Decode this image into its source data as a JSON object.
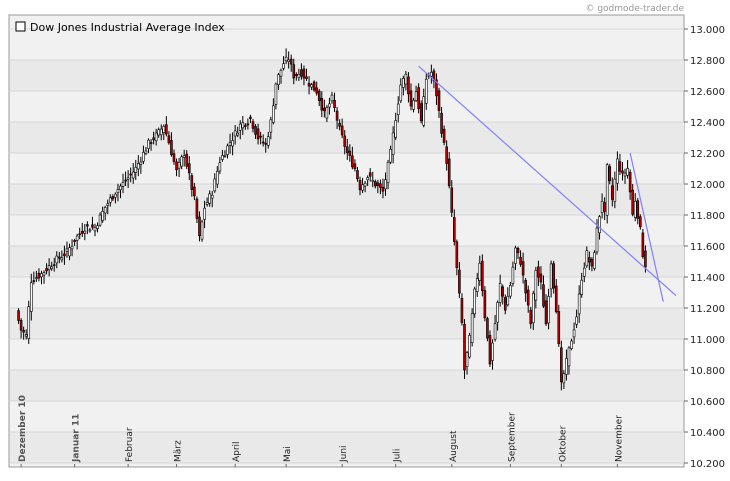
{
  "credit": "© godmode-trader.de",
  "chart_data": {
    "type": "candlestick",
    "title": "Dow Jones Industrial Average Index",
    "ylim": [
      10200,
      13000
    ],
    "yticks": [
      10200,
      10400,
      10600,
      10800,
      11000,
      11200,
      11400,
      11600,
      11800,
      12000,
      12200,
      12400,
      12600,
      12800,
      13000
    ],
    "ytick_labels": [
      "10.200",
      "10.400",
      "10.600",
      "10.800",
      "11.000",
      "11.200",
      "11.400",
      "11.600",
      "11.800",
      "12.000",
      "12.200",
      "12.400",
      "12.600",
      "12.800",
      "13.000"
    ],
    "x_range": [
      0,
      259
    ],
    "months": [
      {
        "label": "Dezember 10",
        "x": 2,
        "bold": true
      },
      {
        "label": "Januar 11",
        "x": 23,
        "bold": true
      },
      {
        "label": "Februar",
        "x": 44,
        "bold": false
      },
      {
        "label": "März",
        "x": 63,
        "bold": false
      },
      {
        "label": "April",
        "x": 86,
        "bold": false
      },
      {
        "label": "Mai",
        "x": 106,
        "bold": false
      },
      {
        "label": "Juni",
        "x": 128,
        "bold": false
      },
      {
        "label": "Juli",
        "x": 149,
        "bold": false
      },
      {
        "label": "August",
        "x": 171,
        "bold": false
      },
      {
        "label": "September",
        "x": 194,
        "bold": false
      },
      {
        "label": "Oktober",
        "x": 214,
        "bold": false
      },
      {
        "label": "November",
        "x": 236,
        "bold": false
      }
    ],
    "close_path": [
      [
        0,
        11180
      ],
      [
        2,
        11060
      ],
      [
        4,
        11020
      ],
      [
        6,
        11380
      ],
      [
        10,
        11420
      ],
      [
        15,
        11500
      ],
      [
        20,
        11560
      ],
      [
        23,
        11640
      ],
      [
        27,
        11720
      ],
      [
        31,
        11720
      ],
      [
        35,
        11850
      ],
      [
        39,
        11950
      ],
      [
        43,
        12020
      ],
      [
        47,
        12100
      ],
      [
        52,
        12260
      ],
      [
        56,
        12330
      ],
      [
        58,
        12380
      ],
      [
        60,
        12270
      ],
      [
        63,
        12080
      ],
      [
        66,
        12200
      ],
      [
        68,
        12050
      ],
      [
        70,
        11900
      ],
      [
        72,
        11650
      ],
      [
        74,
        11850
      ],
      [
        77,
        11950
      ],
      [
        80,
        12150
      ],
      [
        84,
        12270
      ],
      [
        88,
        12380
      ],
      [
        92,
        12420
      ],
      [
        95,
        12300
      ],
      [
        98,
        12250
      ],
      [
        100,
        12400
      ],
      [
        102,
        12650
      ],
      [
        105,
        12780
      ],
      [
        107,
        12810
      ],
      [
        109,
        12700
      ],
      [
        112,
        12720
      ],
      [
        115,
        12650
      ],
      [
        118,
        12600
      ],
      [
        121,
        12450
      ],
      [
        124,
        12550
      ],
      [
        127,
        12350
      ],
      [
        130,
        12200
      ],
      [
        133,
        12100
      ],
      [
        135,
        11980
      ],
      [
        138,
        12050
      ],
      [
        141,
        12000
      ],
      [
        144,
        11950
      ],
      [
        147,
        12200
      ],
      [
        149,
        12430
      ],
      [
        151,
        12640
      ],
      [
        153,
        12700
      ],
      [
        155,
        12500
      ],
      [
        157,
        12600
      ],
      [
        159,
        12400
      ],
      [
        161,
        12680
      ],
      [
        163,
        12720
      ],
      [
        165,
        12580
      ],
      [
        167,
        12350
      ],
      [
        169,
        12150
      ],
      [
        171,
        11800
      ],
      [
        173,
        11450
      ],
      [
        175,
        11100
      ],
      [
        176,
        10800
      ],
      [
        178,
        11000
      ],
      [
        180,
        11300
      ],
      [
        182,
        11500
      ],
      [
        184,
        11150
      ],
      [
        186,
        10850
      ],
      [
        188,
        11100
      ],
      [
        190,
        11350
      ],
      [
        192,
        11200
      ],
      [
        194,
        11350
      ],
      [
        196,
        11580
      ],
      [
        198,
        11500
      ],
      [
        200,
        11300
      ],
      [
        202,
        11100
      ],
      [
        204,
        11450
      ],
      [
        206,
        11350
      ],
      [
        208,
        11100
      ],
      [
        210,
        11500
      ],
      [
        212,
        11200
      ],
      [
        214,
        10700
      ],
      [
        216,
        10850
      ],
      [
        218,
        11000
      ],
      [
        220,
        11150
      ],
      [
        222,
        11400
      ],
      [
        224,
        11550
      ],
      [
        226,
        11450
      ],
      [
        228,
        11700
      ],
      [
        230,
        11900
      ],
      [
        231,
        11800
      ],
      [
        232,
        12100
      ],
      [
        234,
        11900
      ],
      [
        236,
        12150
      ],
      [
        238,
        12050
      ],
      [
        240,
        12100
      ],
      [
        242,
        11800
      ],
      [
        243,
        11900
      ],
      [
        245,
        11700
      ],
      [
        246,
        11550
      ],
      [
        247,
        11480
      ]
    ],
    "trendlines": [
      {
        "from": [
          158,
          12760
        ],
        "to": [
          259,
          11280
        ],
        "color": "#8080ff"
      },
      {
        "from": [
          241,
          12200
        ],
        "to": [
          254,
          11240
        ],
        "color": "#8080ff"
      }
    ]
  }
}
